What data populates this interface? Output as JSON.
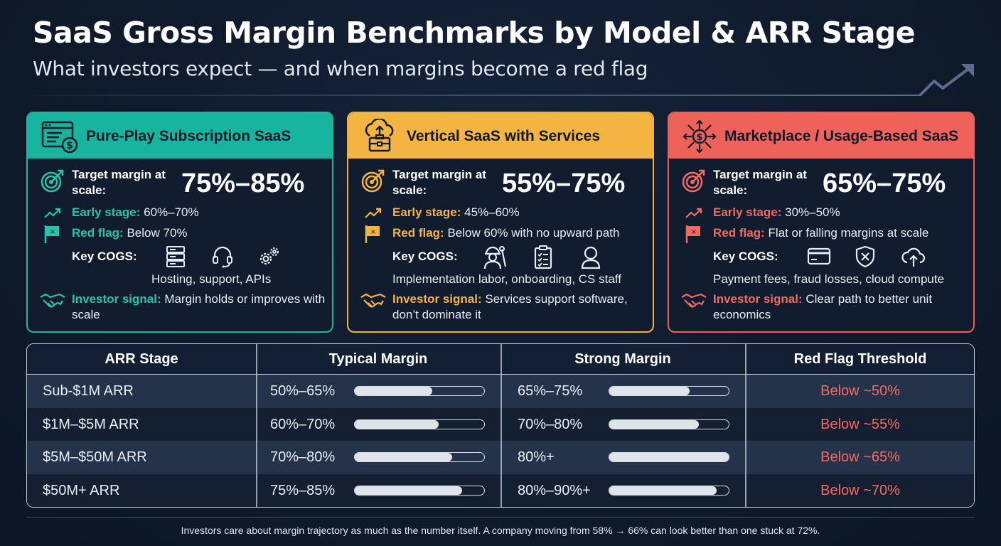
{
  "header": {
    "title": "SaaS Gross Margin Benchmarks by Model & ARR Stage",
    "subtitle": "What investors expect — and when margins become a red flag"
  },
  "cards": [
    {
      "title": "Pure-Play Subscription SaaS",
      "target_label": "Target margin at scale:",
      "target_value": "75%–85%",
      "early_label": "Early stage:",
      "early_value": "60%–70%",
      "red_label": "Red flag:",
      "red_value": "Below 70%",
      "cogs_label": "Key COGS:",
      "cogs_text": "Hosting, support, APIs",
      "signal_label": "Investor signal:",
      "signal_text": "Margin holds or improves with scale",
      "icons": [
        "browser-dollar-icon",
        "server-icon",
        "headset-icon",
        "gears-icon"
      ]
    },
    {
      "title": "Vertical SaaS with Services",
      "target_label": "Target margin at scale:",
      "target_value": "55%–75%",
      "early_label": "Early stage:",
      "early_value": "45%–60%",
      "red_label": "Red flag:",
      "red_value": "Below 60% with no upward path",
      "cogs_label": "Key COGS:",
      "cogs_text": "Implementation labor, onboarding, CS staff",
      "signal_label": "Investor signal:",
      "signal_text": "Services support software, don’t dominate it",
      "icons": [
        "cloud-toolbox-icon",
        "worker-icon",
        "checklist-icon",
        "user-icon"
      ]
    },
    {
      "title": "Marketplace / Usage-Based SaaS",
      "target_label": "Target margin at scale:",
      "target_value": "65%–75%",
      "early_label": "Early stage:",
      "early_value": "30%–50%",
      "red_label": "Red flag:",
      "red_value": "Flat or falling margins at scale",
      "cogs_label": "Key COGS:",
      "cogs_text": "Payment fees, fraud losses, cloud compute",
      "signal_label": "Investor signal:",
      "signal_text": "Clear path to better unit economics",
      "icons": [
        "dollar-network-icon",
        "credit-card-icon",
        "shield-x-icon",
        "cloud-upload-icon"
      ]
    }
  ],
  "table": {
    "headers": [
      "ARR Stage",
      "Typical Margin",
      "Strong Margin",
      "Red Flag Threshold"
    ],
    "rows": [
      {
        "stage": "Sub-$1M ARR",
        "typical": "50%–65%",
        "typical_fill": 0.6,
        "strong": "65%–75%",
        "strong_fill": 0.67,
        "red": "Below ~50%"
      },
      {
        "stage": "$1M–$5M ARR",
        "typical": "60%–70%",
        "typical_fill": 0.65,
        "strong": "70%–80%",
        "strong_fill": 0.75,
        "red": "Below ~55%"
      },
      {
        "stage": "$5M–$50M ARR",
        "typical": "70%–80%",
        "typical_fill": 0.75,
        "strong": "80%+",
        "strong_fill": 1.0,
        "red": "Below ~65%"
      },
      {
        "stage": "$50M+ ARR",
        "typical": "75%–85%",
        "typical_fill": 0.83,
        "strong": "80%–90%+",
        "strong_fill": 0.9,
        "red": "Below ~70%"
      }
    ]
  },
  "footer": {
    "note": "Investors care about margin trajectory as much as the number itself. A company moving from 58% → 66% can look better than one stuck at 72%."
  },
  "colors": {
    "teal": "#17b59f",
    "gold": "#f4b441",
    "red": "#ee625a",
    "background": "#101b2c"
  }
}
